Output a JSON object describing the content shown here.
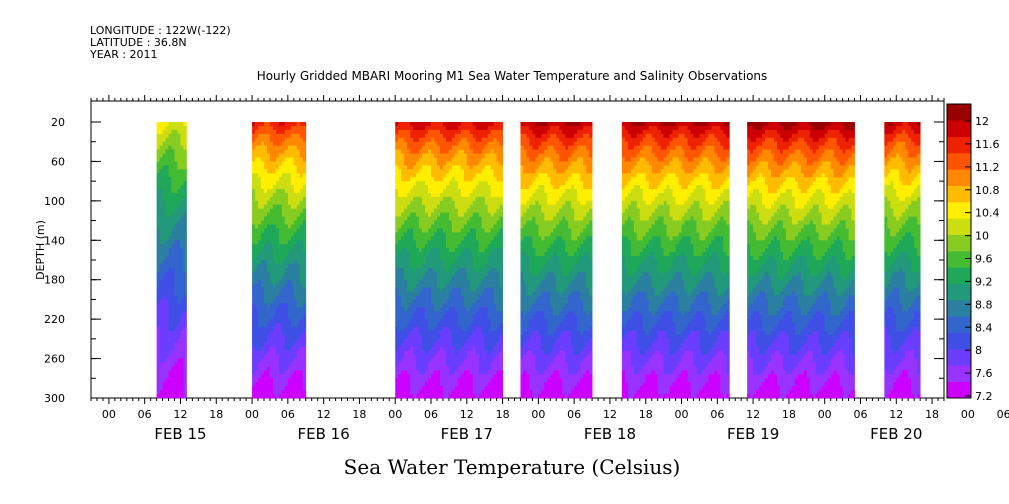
{
  "header": {
    "longitude": "LONGITUDE : 122W(-122)",
    "latitude": "LATITUDE : 36.8N",
    "year": "YEAR : 2011"
  },
  "chart_data": {
    "type": "heatmap",
    "title": "Hourly Gridded MBARI Mooring M1 Sea Water Temperature and Salinity Observations",
    "xlabel": "Sea Water Temperature (Celsius)",
    "ylabel": "DEPTH (m)",
    "ylim": [
      20,
      300
    ],
    "y_ticks": [
      "20",
      "60",
      "100",
      "140",
      "180",
      "220",
      "260",
      "300"
    ],
    "x_hour_ticks": [
      "00",
      "06",
      "12",
      "18",
      "00",
      "06",
      "12",
      "18",
      "00",
      "06",
      "12",
      "18",
      "00",
      "06",
      "12",
      "18",
      "00",
      "06",
      "12",
      "18",
      "00",
      "06",
      "12",
      "18",
      "00",
      "06",
      "12"
    ],
    "x_date_labels": [
      "FEB 15",
      "FEB 16",
      "FEB 17",
      "FEB 18",
      "FEB 19",
      "FEB 20"
    ],
    "colorbar": {
      "levels": [
        7.2,
        7.6,
        8,
        8.4,
        8.8,
        9.2,
        9.6,
        10,
        10.4,
        10.8,
        11.2,
        11.6,
        12
      ],
      "labels": [
        "7.2",
        "7.6",
        "8",
        "8.4",
        "8.8",
        "9.2",
        "9.6",
        "10",
        "10.4",
        "10.8",
        "11.2",
        "11.6",
        "12"
      ],
      "colors": [
        "#cc00ff",
        "#9933ff",
        "#6a3dff",
        "#3f4fe6",
        "#3366cc",
        "#2b7fa0",
        "#22997a",
        "#1fa85a",
        "#44bb33",
        "#88cc22",
        "#ccdd11",
        "#ffee00",
        "#ffbb00",
        "#ff8800",
        "#ff5500",
        "#ee2200",
        "#cc0000",
        "#990000"
      ]
    },
    "data_segments": [
      {
        "start": "2011-02-15T08:00",
        "end": "2011-02-15T13:00",
        "surface_temp": 10.5
      },
      {
        "start": "2011-02-16T00:00",
        "end": "2011-02-16T09:00",
        "surface_temp": 11.8
      },
      {
        "start": "2011-02-17T00:00",
        "end": "2011-02-17T18:00",
        "surface_temp": 12.0
      },
      {
        "start": "2011-02-17T21:00",
        "end": "2011-02-18T09:00",
        "surface_temp": 12.2
      },
      {
        "start": "2011-02-18T14:00",
        "end": "2011-02-19T08:00",
        "surface_temp": 12.2
      },
      {
        "start": "2011-02-19T11:00",
        "end": "2011-02-20T05:00",
        "surface_temp": 12.3
      },
      {
        "start": "2011-02-20T10:00",
        "end": "2011-02-20T16:00",
        "surface_temp": 12.1
      }
    ]
  }
}
